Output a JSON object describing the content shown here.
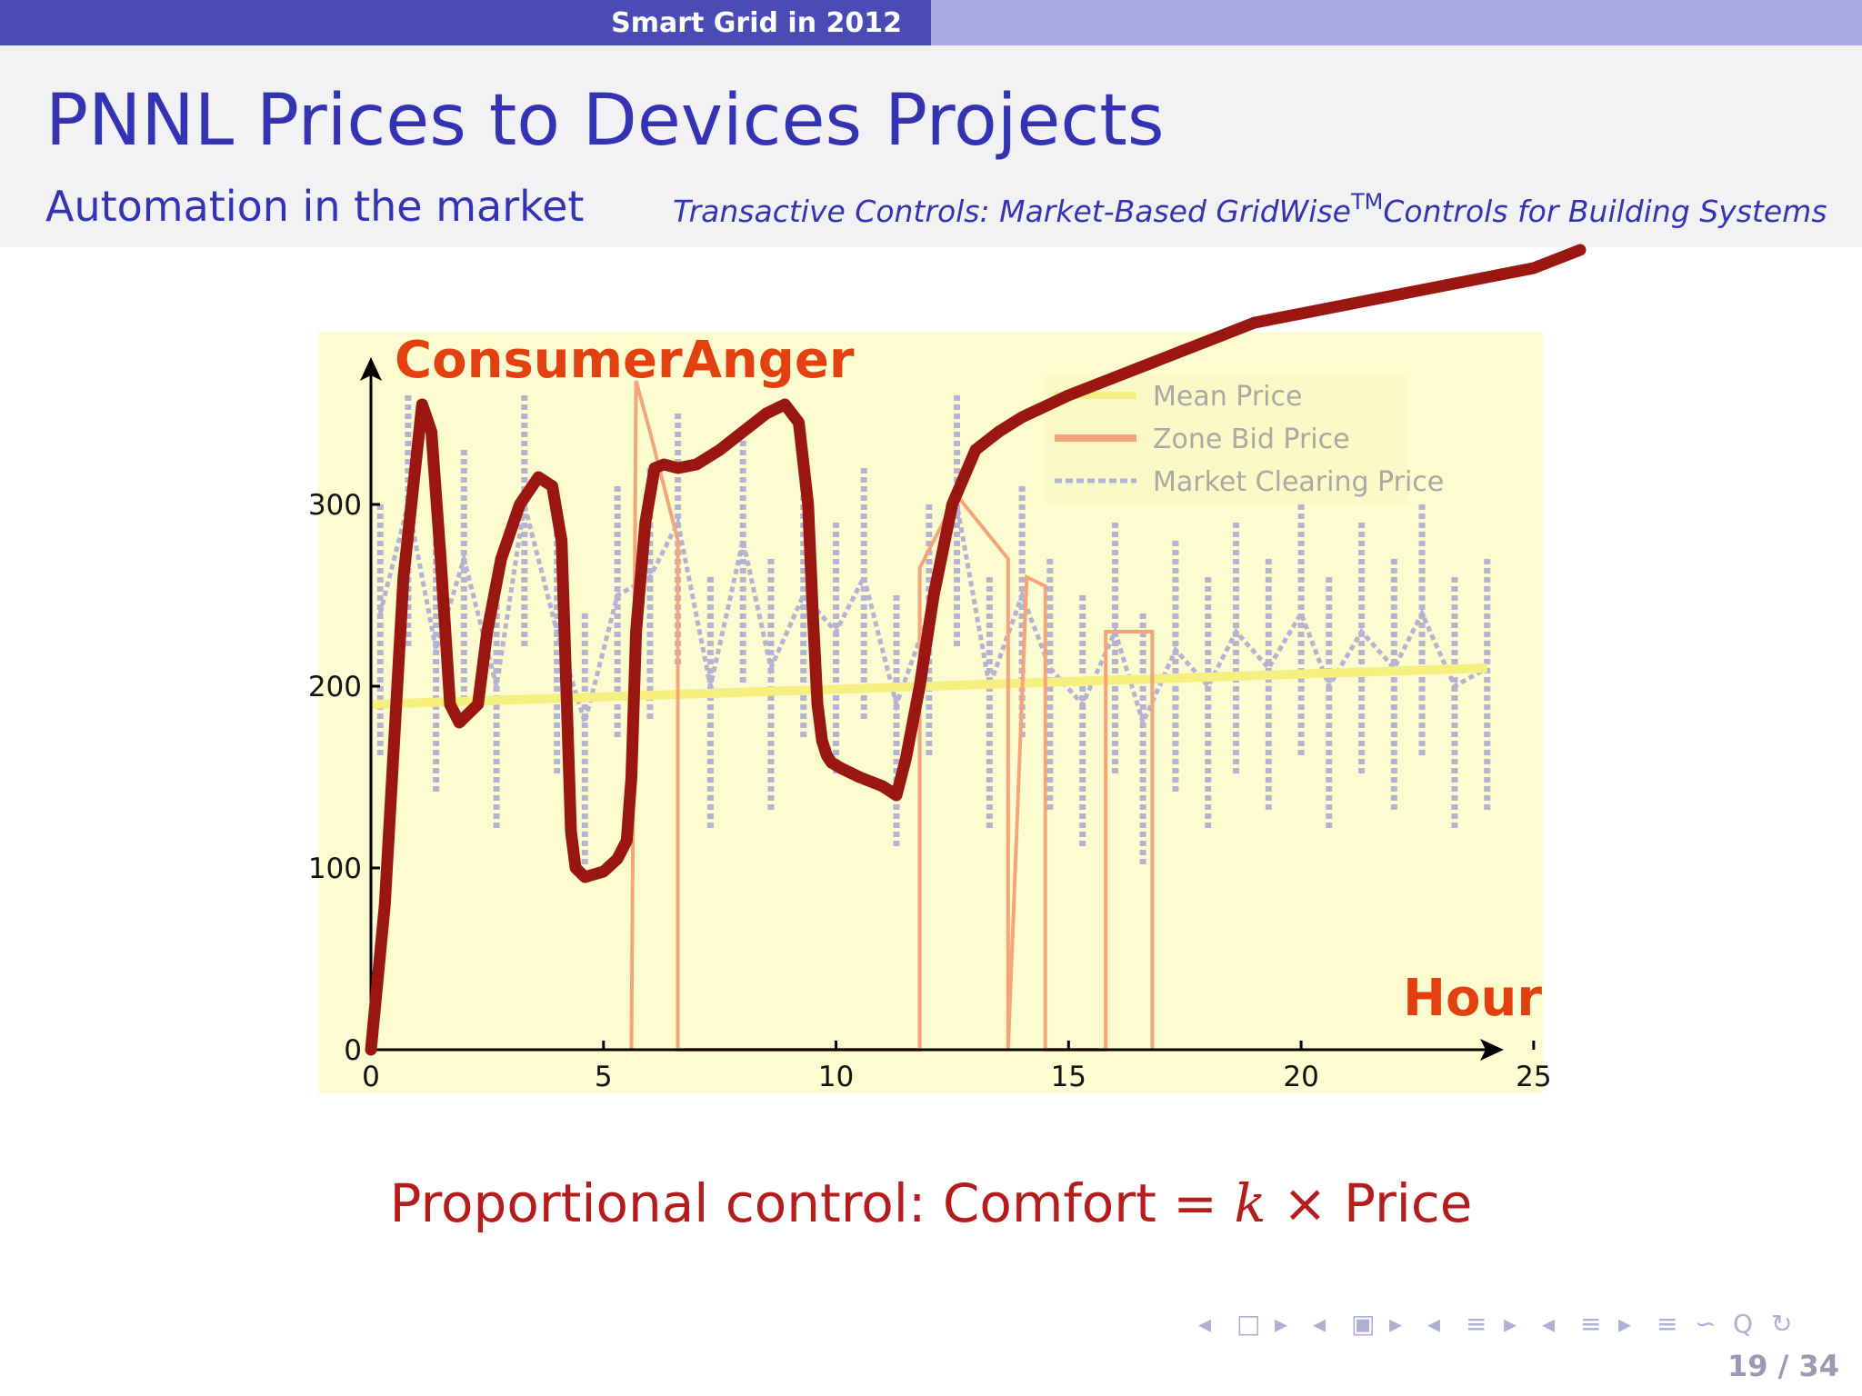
{
  "header": {
    "section": "Smart Grid in 2012"
  },
  "slide": {
    "title": "PNNL Prices to Devices Projects",
    "subtitle": "Automation in the market",
    "citation_main": "Transactive Controls: Market-Based GridWise",
    "citation_sup": "TM",
    "citation_tail": "Controls for Building Systems"
  },
  "chart_data": {
    "type": "line",
    "xlabel": "Hour",
    "ylabel": "ConsumerAnger",
    "xlim": [
      0,
      26
    ],
    "ylim": [
      0,
      400
    ],
    "xticks": [
      0,
      5,
      10,
      15,
      20,
      25
    ],
    "yticks": [
      0,
      100,
      200,
      300
    ],
    "legend_position": "top-right",
    "series": [
      {
        "name": "Mean Price",
        "style": "solid",
        "color": "#f5f080",
        "x": [
          0,
          24
        ],
        "values": [
          190,
          210
        ]
      },
      {
        "name": "Zone Bid Price",
        "style": "solid",
        "color": "#f5a57a",
        "x": [
          5.6,
          5.7,
          6.0,
          6.6,
          6.6,
          11.8,
          11.8,
          12.6,
          13.7,
          13.7,
          14.1,
          14.5,
          14.5,
          15.8,
          15.8,
          16.8,
          16.8
        ],
        "values": [
          0,
          368,
          340,
          280,
          0,
          0,
          265,
          305,
          270,
          0,
          260,
          255,
          0,
          0,
          230,
          230,
          0
        ]
      },
      {
        "name": "Market Clearing Price",
        "style": "dashed",
        "color": "#b4b4d2",
        "x": [
          0.2,
          0.8,
          1.4,
          2.0,
          2.7,
          3.3,
          4.0,
          4.6,
          5.3,
          6.0,
          6.6,
          7.3,
          8.0,
          8.6,
          9.3,
          10.0,
          10.6,
          11.3,
          12.0,
          12.6,
          13.3,
          14.0,
          14.6,
          15.3,
          16.0,
          16.6,
          17.3,
          18.0,
          18.6,
          19.3,
          20.0,
          20.6,
          21.3,
          22.0,
          22.6,
          23.3,
          24.0
        ],
        "values": [
          240,
          300,
          220,
          270,
          200,
          300,
          230,
          180,
          250,
          260,
          290,
          200,
          280,
          210,
          250,
          230,
          260,
          190,
          240,
          300,
          200,
          250,
          210,
          190,
          230,
          180,
          220,
          200,
          230,
          210,
          240,
          200,
          230,
          210,
          240,
          200,
          210
        ]
      },
      {
        "name": "ConsumerAnger",
        "style": "thick",
        "color": "#9a1711",
        "x": [
          0,
          0.3,
          0.7,
          1.1,
          1.3,
          1.5,
          1.7,
          1.9,
          2.1,
          2.3,
          2.5,
          2.8,
          3.2,
          3.6,
          3.9,
          4.1,
          4.2,
          4.3,
          4.4,
          4.6,
          5.0,
          5.3,
          5.5,
          5.6,
          5.7,
          5.9,
          6.1,
          6.3,
          6.6,
          7.0,
          7.5,
          8.0,
          8.5,
          8.9,
          9.2,
          9.4,
          9.5,
          9.6,
          9.7,
          9.8,
          9.9,
          10.1,
          10.5,
          11.0,
          11.3,
          11.5,
          11.8,
          12.1,
          12.5,
          13.0,
          13.5,
          14.0,
          15.0,
          16.0,
          17.0,
          18.0,
          19.0,
          20.0,
          21.0,
          22.0,
          23.0,
          24.0,
          25.0,
          26.0
        ],
        "values": [
          0,
          80,
          260,
          355,
          340,
          270,
          190,
          180,
          185,
          190,
          230,
          270,
          300,
          315,
          310,
          280,
          200,
          120,
          100,
          95,
          98,
          105,
          115,
          150,
          230,
          290,
          320,
          322,
          320,
          322,
          330,
          340,
          350,
          355,
          345,
          300,
          240,
          190,
          170,
          162,
          158,
          155,
          150,
          145,
          140,
          160,
          200,
          250,
          300,
          330,
          340,
          348,
          360,
          370,
          380,
          390,
          400,
          405,
          410,
          415,
          420,
          425,
          430,
          440
        ]
      }
    ],
    "nav_symbols": [
      "◂",
      "□",
      "▸",
      "◂",
      "▣",
      "▸",
      "◂",
      "≡",
      "▸",
      "◂",
      "≡",
      "▸",
      "≡",
      "∽",
      "Q",
      "↻"
    ]
  },
  "formula": {
    "left": "Proportional control:  Comfort",
    "eq": "=",
    "k": "k",
    "times": "×",
    "price": "Price"
  },
  "footer": {
    "page": "19 / 34"
  }
}
